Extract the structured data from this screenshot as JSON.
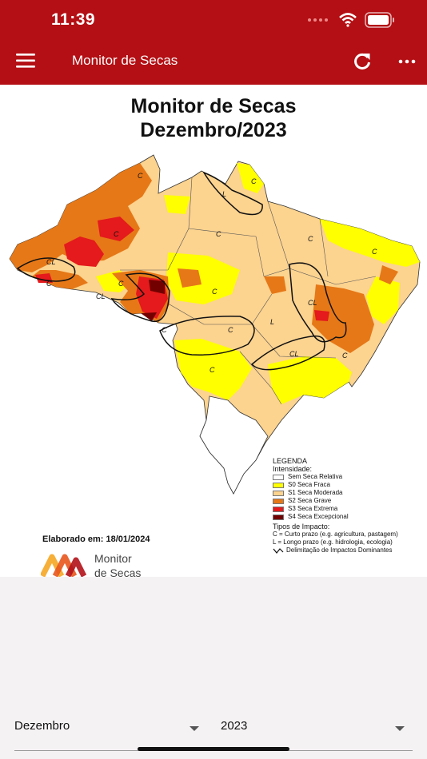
{
  "status_bar": {
    "time": "11:39"
  },
  "app_bar": {
    "title": "Monitor de Secas",
    "menu_icon": "hamburger-menu-icon",
    "refresh_icon": "refresh-icon",
    "more_icon": "more-horizontal-icon"
  },
  "map": {
    "title_line1": "Monitor de Secas",
    "title_line2": "Dezembro/2023",
    "elaborado": "Elaborado em: 18/01/2024",
    "logo_line1": "Monitor",
    "logo_line2": "de Secas",
    "impact_labels": [
      "C",
      "CL",
      "L"
    ]
  },
  "legend": {
    "title": "LEGENDA",
    "subtitle": "Intensidade:",
    "items": [
      {
        "label": "Sem Seca Relativa",
        "color": "#ffffff"
      },
      {
        "label": "S0 Seca Fraca",
        "color": "#ffff00"
      },
      {
        "label": "S1 Seca Moderada",
        "color": "#fcd38f"
      },
      {
        "label": "S2 Seca Grave",
        "color": "#e67817"
      },
      {
        "label": "S3 Seca Extrema",
        "color": "#e41a1c"
      },
      {
        "label": "S4 Seca Excepcional",
        "color": "#730000"
      }
    ],
    "impact_title": "Tipos de Impacto:",
    "impact_c": "C = Curto prazo (e.g. agricultura, pastagem)",
    "impact_l": "L = Longo prazo (e.g. hidrologia, ecologia)",
    "impact_line": "Delimitação de Impactos Dominantes"
  },
  "filters": {
    "month": "Dezembro",
    "year": "2023"
  }
}
